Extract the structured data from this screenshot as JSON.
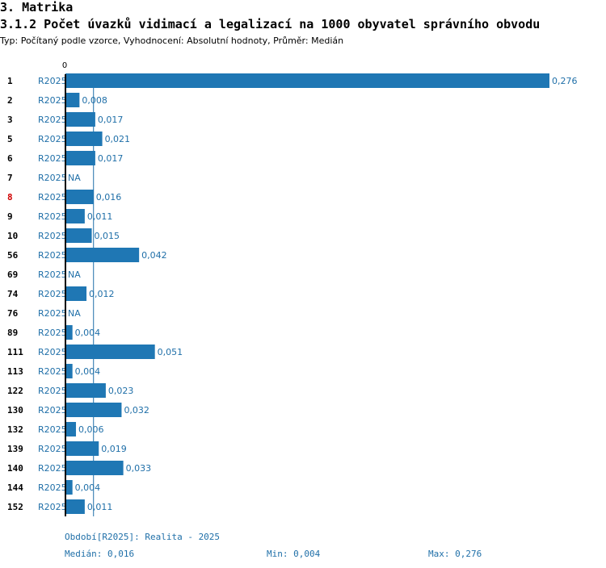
{
  "heading": "3. Matrika",
  "subheading": "3.1.2 Počet úvazků vidimací a legalizací na 1000 obyvatel správního obvodu",
  "type_line": "Typ: Počítaný podle vzorce, Vyhodnocení: Absolutní hodnoty, Průměr: Medián",
  "colors": {
    "bar": "#1f77b4",
    "text": "#1f6fa8",
    "highlight": "#d00000"
  },
  "chart_data": {
    "type": "bar",
    "orientation": "horizontal",
    "series_label": "R2025",
    "highlight_category": "8",
    "axis_zero_label": "0",
    "xlim": [
      0,
      0.276
    ],
    "median_line": 0.016,
    "categories": [
      "1",
      "2",
      "3",
      "5",
      "6",
      "7",
      "8",
      "9",
      "10",
      "56",
      "69",
      "74",
      "76",
      "89",
      "111",
      "113",
      "122",
      "130",
      "132",
      "139",
      "140",
      "144",
      "152"
    ],
    "values": [
      0.276,
      0.008,
      0.017,
      0.021,
      0.017,
      null,
      0.016,
      0.011,
      0.015,
      0.042,
      null,
      0.012,
      null,
      0.004,
      0.051,
      0.004,
      0.023,
      0.032,
      0.006,
      0.019,
      0.033,
      0.004,
      0.011
    ],
    "value_labels": [
      "0,276",
      "0,008",
      "0,017",
      "0,021",
      "0,017",
      "NA",
      "0,016",
      "0,011",
      "0,015",
      "0,042",
      "NA",
      "0,012",
      "NA",
      "0,004",
      "0,051",
      "0,004",
      "0,023",
      "0,032",
      "0,006",
      "0,019",
      "0,033",
      "0,004",
      "0,011"
    ]
  },
  "footer": {
    "period": "Období[R2025]: Realita - 2025",
    "median": "Medián: 0,016",
    "min": "Min: 0,004",
    "max": "Max: 0,276"
  }
}
